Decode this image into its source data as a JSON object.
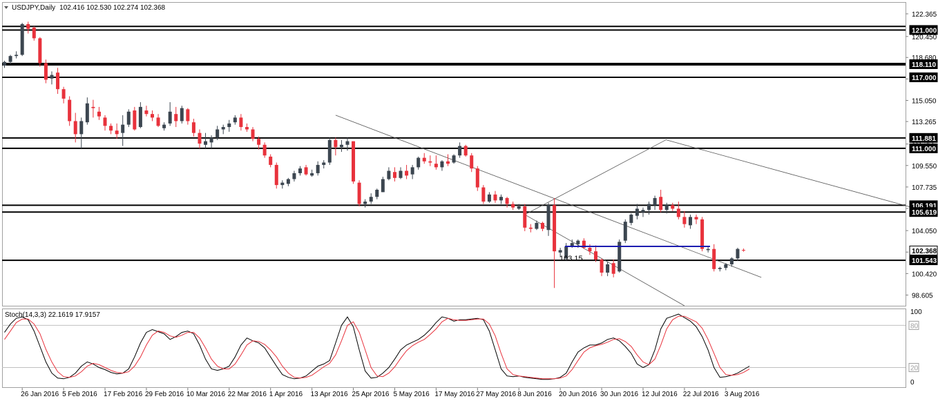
{
  "chart_data": {
    "type": "candlestick",
    "title": "USDJPY,Daily",
    "ohlc_header": "102.416 102.530 102.274 102.368",
    "ylim": [
      97.7,
      123.3
    ],
    "price_ticks": [
      "122.365",
      "120.450",
      "118.680",
      "116.865",
      "115.050",
      "113.265",
      "111.365",
      "109.550",
      "107.735",
      "105.920",
      "104.050",
      "102.235",
      "100.420",
      "98.605"
    ],
    "x_ticks": [
      "26 Jan 2016",
      "5 Feb 2016",
      "17 Feb 2016",
      "29 Feb 2016",
      "10 Mar 2016",
      "22 Mar 2016",
      "1 Apr 2016",
      "13 Apr 2016",
      "25 Apr 2016",
      "5 May 2016",
      "17 May 2016",
      "27 May 2016",
      "8 Jun 2016",
      "20 Jun 2016",
      "30 Jun 2016",
      "12 Jul 2016",
      "22 Jul 2016",
      "3 Aug 2016"
    ],
    "levels": [
      {
        "price": 121.3,
        "label": ""
      },
      {
        "price": 121.0,
        "label": "121.000"
      },
      {
        "price": 118.11,
        "label": "118.110"
      },
      {
        "price": 117.0,
        "label": "117.000"
      },
      {
        "price": 111.881,
        "label": "111.881"
      },
      {
        "price": 111.0,
        "label": "111.000"
      },
      {
        "price": 106.191,
        "label": "106.191"
      },
      {
        "price": 105.619,
        "label": "105.619"
      },
      {
        "price": 101.543,
        "label": "101.543"
      }
    ],
    "current_price_label": "102.368",
    "annotation": {
      "text": "103.15",
      "price": 103.15
    },
    "candles": [
      [
        118.0,
        118.4,
        117.8,
        118.3
      ],
      [
        118.3,
        118.9,
        118.1,
        118.8
      ],
      [
        118.8,
        119.2,
        118.6,
        118.9
      ],
      [
        118.9,
        121.6,
        118.8,
        121.5
      ],
      [
        121.5,
        121.7,
        120.7,
        121.1
      ],
      [
        121.2,
        121.3,
        120.1,
        120.3
      ],
      [
        120.3,
        120.4,
        117.9,
        118.2
      ],
      [
        118.2,
        118.5,
        116.5,
        116.8
      ],
      [
        116.9,
        117.5,
        116.4,
        117.2
      ],
      [
        117.4,
        117.8,
        115.6,
        116.0
      ],
      [
        116.0,
        116.2,
        114.8,
        115.2
      ],
      [
        115.1,
        115.4,
        112.9,
        113.3
      ],
      [
        113.3,
        114.0,
        111.5,
        112.2
      ],
      [
        112.2,
        113.6,
        111.0,
        113.3
      ],
      [
        113.2,
        115.3,
        113.0,
        114.8
      ],
      [
        114.5,
        115.1,
        113.6,
        114.4
      ],
      [
        114.1,
        114.5,
        113.4,
        113.7
      ],
      [
        113.6,
        113.8,
        112.5,
        112.9
      ],
      [
        112.9,
        113.1,
        112.2,
        112.5
      ],
      [
        112.5,
        113.1,
        111.8,
        112.2
      ],
      [
        112.3,
        113.8,
        111.2,
        113.0
      ],
      [
        113.0,
        114.3,
        112.8,
        114.1
      ],
      [
        114.2,
        114.5,
        112.5,
        112.6
      ],
      [
        112.8,
        114.9,
        112.7,
        114.5
      ],
      [
        114.2,
        114.6,
        113.7,
        113.9
      ],
      [
        113.9,
        114.2,
        113.3,
        113.6
      ],
      [
        113.6,
        113.9,
        112.8,
        112.9
      ],
      [
        112.7,
        113.2,
        112.5,
        113.0
      ],
      [
        113.1,
        114.9,
        112.9,
        114.1
      ],
      [
        113.9,
        114.5,
        112.8,
        113.3
      ],
      [
        113.3,
        114.6,
        113.1,
        114.4
      ],
      [
        114.3,
        114.4,
        113.0,
        113.3
      ],
      [
        113.2,
        113.5,
        112.0,
        112.3
      ],
      [
        112.3,
        112.6,
        111.0,
        111.4
      ],
      [
        111.3,
        112.3,
        111.0,
        111.6
      ],
      [
        111.5,
        112.1,
        111.0,
        111.9
      ],
      [
        111.9,
        112.9,
        111.7,
        112.6
      ],
      [
        112.6,
        113.0,
        112.2,
        112.8
      ],
      [
        112.8,
        113.4,
        112.4,
        113.1
      ],
      [
        113.2,
        113.8,
        113.0,
        113.6
      ],
      [
        113.6,
        113.9,
        112.5,
        112.8
      ],
      [
        112.8,
        113.1,
        112.4,
        112.6
      ],
      [
        112.6,
        112.8,
        111.6,
        111.8
      ],
      [
        111.8,
        112.0,
        110.9,
        111.3
      ],
      [
        111.3,
        111.5,
        110.2,
        110.4
      ],
      [
        110.3,
        110.5,
        109.4,
        109.6
      ],
      [
        109.6,
        109.8,
        107.6,
        107.9
      ],
      [
        107.9,
        108.3,
        107.6,
        108.1
      ],
      [
        108.0,
        108.5,
        107.8,
        108.4
      ],
      [
        108.4,
        109.1,
        108.2,
        108.9
      ],
      [
        108.9,
        109.5,
        108.7,
        109.3
      ],
      [
        109.4,
        109.6,
        108.7,
        108.8
      ],
      [
        108.7,
        109.2,
        108.6,
        108.9
      ],
      [
        108.9,
        109.9,
        108.7,
        109.6
      ],
      [
        109.6,
        110.0,
        109.3,
        109.8
      ],
      [
        109.8,
        111.9,
        109.6,
        111.7
      ],
      [
        111.7,
        111.9,
        110.4,
        111.1
      ],
      [
        111.1,
        111.7,
        110.7,
        111.3
      ],
      [
        111.3,
        111.9,
        110.8,
        111.6
      ],
      [
        111.6,
        111.6,
        108.0,
        108.2
      ],
      [
        108.1,
        108.3,
        106.1,
        106.3
      ],
      [
        106.3,
        106.7,
        106.0,
        106.5
      ],
      [
        106.5,
        107.2,
        106.3,
        106.9
      ],
      [
        106.9,
        107.6,
        106.7,
        107.5
      ],
      [
        107.3,
        108.6,
        107.3,
        108.4
      ],
      [
        108.4,
        109.4,
        108.3,
        109.1
      ],
      [
        109.0,
        109.4,
        108.2,
        108.5
      ],
      [
        108.5,
        109.4,
        108.4,
        109.1
      ],
      [
        109.1,
        109.6,
        108.4,
        108.7
      ],
      [
        108.8,
        109.6,
        108.4,
        109.4
      ],
      [
        109.4,
        110.3,
        109.2,
        110.2
      ],
      [
        110.2,
        110.6,
        109.7,
        109.9
      ],
      [
        109.9,
        110.4,
        109.5,
        109.8
      ],
      [
        109.7,
        110.4,
        109.2,
        109.4
      ],
      [
        109.4,
        110.0,
        109.1,
        109.9
      ],
      [
        109.9,
        110.5,
        109.5,
        109.7
      ],
      [
        109.8,
        110.5,
        109.7,
        110.4
      ],
      [
        110.4,
        111.5,
        110.2,
        111.2
      ],
      [
        111.2,
        111.3,
        110.3,
        110.4
      ],
      [
        110.4,
        110.6,
        109.0,
        109.3
      ],
      [
        109.3,
        109.5,
        107.4,
        107.7
      ],
      [
        107.7,
        107.9,
        106.3,
        106.5
      ],
      [
        106.5,
        107.3,
        106.4,
        107.1
      ],
      [
        107.1,
        107.4,
        106.4,
        106.6
      ],
      [
        106.6,
        107.1,
        106.3,
        106.9
      ],
      [
        106.8,
        106.9,
        106.0,
        106.3
      ],
      [
        106.3,
        106.5,
        105.8,
        106.0
      ],
      [
        105.9,
        106.3,
        105.8,
        106.1
      ],
      [
        106.1,
        106.3,
        104.0,
        104.3
      ],
      [
        104.3,
        104.6,
        103.9,
        104.2
      ],
      [
        104.2,
        104.9,
        104.1,
        104.7
      ],
      [
        104.7,
        104.8,
        104.0,
        104.2
      ],
      [
        104.1,
        106.4,
        103.6,
        106.2
      ],
      [
        106.2,
        106.8,
        99.2,
        102.3
      ],
      [
        102.2,
        102.6,
        101.8,
        102.4
      ],
      [
        101.7,
        103.0,
        101.5,
        102.7
      ],
      [
        102.7,
        103.3,
        102.6,
        103.0
      ],
      [
        102.9,
        103.3,
        102.6,
        103.2
      ],
      [
        103.2,
        103.4,
        102.5,
        102.6
      ],
      [
        102.6,
        102.9,
        102.0,
        102.3
      ],
      [
        102.3,
        102.8,
        101.4,
        101.6
      ],
      [
        101.6,
        101.7,
        100.2,
        100.5
      ],
      [
        100.5,
        101.4,
        100.2,
        101.2
      ],
      [
        101.3,
        101.6,
        100.1,
        100.4
      ],
      [
        100.6,
        103.3,
        100.5,
        103.1
      ],
      [
        103.2,
        105.0,
        103.0,
        104.8
      ],
      [
        104.7,
        105.5,
        104.5,
        105.4
      ],
      [
        105.3,
        106.3,
        105.0,
        105.9
      ],
      [
        105.6,
        106.0,
        105.2,
        105.8
      ],
      [
        105.8,
        106.5,
        105.4,
        106.3
      ],
      [
        106.2,
        107.0,
        105.8,
        106.8
      ],
      [
        106.9,
        107.5,
        105.6,
        105.8
      ],
      [
        105.8,
        106.4,
        105.5,
        106.2
      ],
      [
        106.2,
        106.4,
        105.7,
        105.9
      ],
      [
        105.9,
        106.5,
        105.0,
        105.2
      ],
      [
        105.2,
        105.7,
        104.3,
        104.6
      ],
      [
        104.5,
        105.4,
        104.2,
        105.2
      ],
      [
        105.2,
        105.4,
        104.6,
        105.0
      ],
      [
        105.0,
        105.2,
        102.3,
        102.5
      ],
      [
        102.4,
        102.7,
        102.2,
        102.5
      ],
      [
        102.5,
        102.9,
        100.6,
        100.8
      ],
      [
        100.8,
        101.0,
        100.6,
        100.9
      ],
      [
        100.9,
        101.3,
        100.7,
        101.2
      ],
      [
        101.2,
        101.8,
        101.0,
        101.7
      ],
      [
        101.7,
        102.6,
        101.5,
        102.5
      ],
      [
        102.416,
        102.53,
        102.274,
        102.368
      ]
    ],
    "trendlines": [
      {
        "name": "upper-channel",
        "from": [
          56,
          113.8
        ],
        "to": [
          128,
          100.1
        ]
      },
      {
        "name": "lower-channel",
        "from": [
          88,
          105.4
        ],
        "to": [
          115,
          97.7
        ]
      },
      {
        "name": "rising-leg",
        "from": [
          88,
          105.4
        ],
        "to": [
          112,
          111.75
        ]
      },
      {
        "name": "falling-channel",
        "from": [
          112,
          111.7
        ],
        "to": [
          198,
          99.9
        ]
      }
    ],
    "stoch": {
      "label": "Stoch(14,3,3) 22.1619 17.9157",
      "ylim": [
        -8,
        103
      ],
      "levels": [
        80,
        20
      ],
      "axis_labels": [
        "100",
        "80",
        "20",
        "0"
      ],
      "main": [
        70,
        82,
        90,
        92,
        88,
        72,
        50,
        28,
        12,
        5,
        4,
        6,
        12,
        22,
        28,
        25,
        20,
        17,
        13,
        11,
        12,
        18,
        35,
        55,
        70,
        74,
        71,
        68,
        60,
        64,
        70,
        72,
        68,
        52,
        32,
        18,
        16,
        18,
        22,
        35,
        52,
        62,
        58,
        55,
        48,
        35,
        22,
        10,
        6,
        4,
        5,
        8,
        15,
        22,
        25,
        30,
        55,
        80,
        92,
        78,
        45,
        15,
        5,
        6,
        12,
        20,
        32,
        45,
        52,
        56,
        60,
        66,
        74,
        84,
        92,
        90,
        86,
        88,
        88,
        89,
        90,
        88,
        72,
        45,
        18,
        8,
        7,
        8,
        6,
        5,
        4,
        3,
        3,
        4,
        6,
        12,
        28,
        42,
        48,
        52,
        52,
        55,
        60,
        62,
        58,
        50,
        40,
        25,
        20,
        24,
        45,
        75,
        90,
        93,
        96,
        91,
        86,
        78,
        64,
        45,
        20,
        6,
        7,
        9,
        12,
        17,
        22
      ],
      "signal": [
        60,
        72,
        84,
        89,
        89,
        82,
        68,
        46,
        28,
        14,
        7,
        6,
        8,
        14,
        22,
        26,
        24,
        20,
        16,
        13,
        12,
        14,
        22,
        35,
        52,
        66,
        72,
        70,
        65,
        63,
        66,
        70,
        70,
        62,
        48,
        32,
        22,
        18,
        18,
        25,
        38,
        52,
        58,
        57,
        53,
        45,
        35,
        22,
        12,
        6,
        5,
        6,
        9,
        15,
        21,
        26,
        38,
        58,
        80,
        85,
        70,
        45,
        20,
        8,
        7,
        12,
        21,
        33,
        44,
        51,
        56,
        60,
        67,
        75,
        85,
        90,
        88,
        87,
        87,
        88,
        89,
        89,
        82,
        65,
        40,
        18,
        10,
        8,
        7,
        6,
        5,
        4,
        4,
        4,
        5,
        8,
        17,
        30,
        42,
        48,
        51,
        53,
        56,
        60,
        61,
        57,
        50,
        38,
        28,
        24,
        32,
        52,
        75,
        88,
        93,
        93,
        89,
        85,
        76,
        60,
        40,
        20,
        10,
        9,
        10,
        13,
        17.9
      ]
    }
  }
}
